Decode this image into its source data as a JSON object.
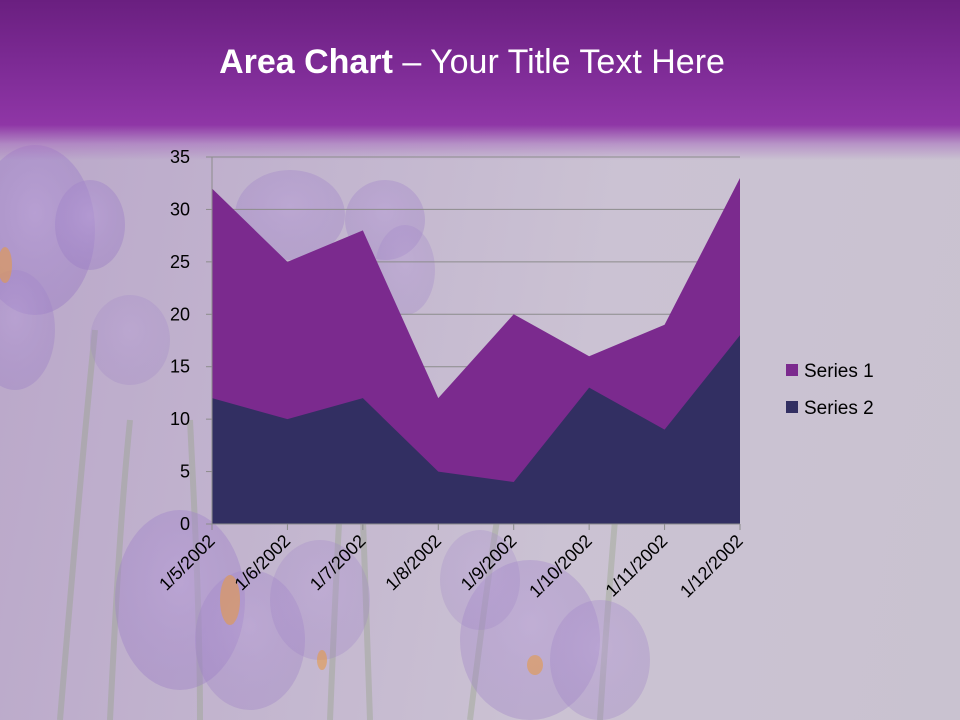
{
  "slide": {
    "title_bold": "Area Chart",
    "title_rest": " – Your Title Text Here"
  },
  "colors": {
    "series1": "#7b2a8e",
    "series2": "#322f62",
    "gridline": "#8c8c8c",
    "axis_text": "#000000"
  },
  "chart_data": {
    "type": "area",
    "categories": [
      "1/5/2002",
      "1/6/2002",
      "1/7/2002",
      "1/8/2002",
      "1/9/2002",
      "1/10/2002",
      "1/11/2002",
      "1/12/2002"
    ],
    "series": [
      {
        "name": "Series 1",
        "values": [
          32,
          25,
          28,
          12,
          20,
          16,
          19,
          33
        ]
      },
      {
        "name": "Series 2",
        "values": [
          12,
          10,
          12,
          5,
          4,
          13,
          9,
          18
        ]
      }
    ],
    "y_ticks": [
      "0",
      "5",
      "10",
      "15",
      "20",
      "25",
      "30",
      "35"
    ],
    "ylim": [
      0,
      35
    ],
    "grid": true,
    "legend_position": "right"
  }
}
